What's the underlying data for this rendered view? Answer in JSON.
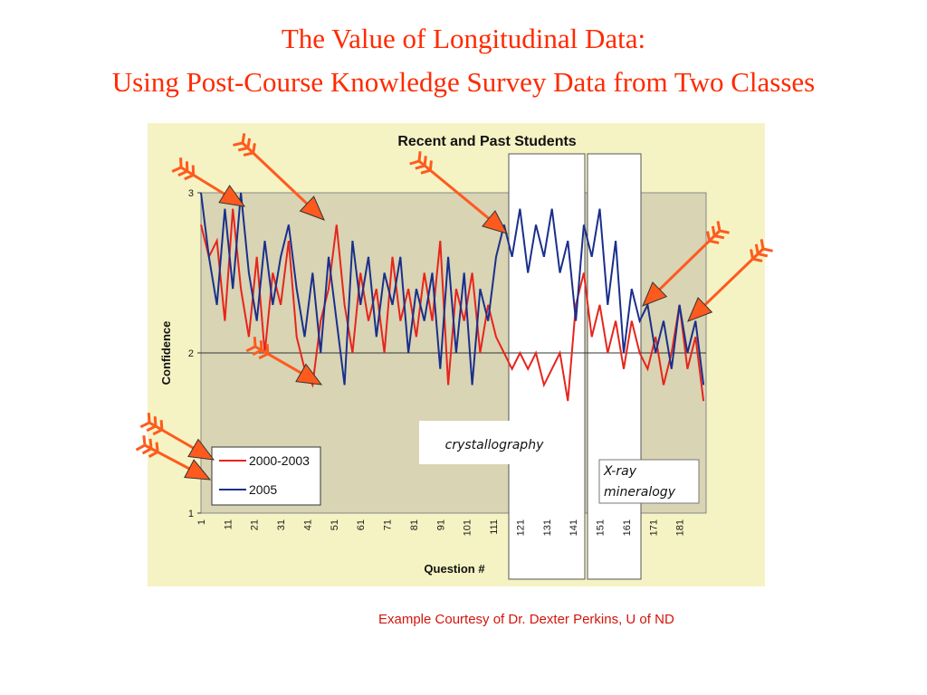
{
  "slide": {
    "title_line1": "The Value of Longitudinal Data:",
    "title_line2": "Using Post-Course Knowledge Survey Data from Two Classes",
    "credit": "Example Courtesy of Dr. Dexter Perkins, U of ND"
  },
  "colors": {
    "title": "#ff2a00",
    "credit": "#d4140c",
    "figure_background": "#f5f3c3",
    "plot_background": "#d8d4b4",
    "series_2000_2003": "#e8241c",
    "series_2005": "#1a2f8c",
    "arrow": "#ff5a1e"
  },
  "annotations": {
    "crystallography": "crystallography",
    "xray_line1": "X-ray",
    "xray_line2": "mineralogy"
  },
  "chart_data": {
    "type": "line",
    "title": "Recent and Past Students",
    "xlabel": "Question #",
    "ylabel": "Confidence",
    "xlim": [
      1,
      191
    ],
    "ylim": [
      1,
      3
    ],
    "yticks": [
      1,
      2,
      3
    ],
    "xticks": [
      1,
      11,
      21,
      31,
      41,
      51,
      61,
      71,
      81,
      91,
      101,
      111,
      121,
      131,
      141,
      151,
      161,
      171,
      181
    ],
    "legend_position": "bottom-left",
    "grid": "horizontal line at 2",
    "highlighted_ranges": [
      {
        "label": "crystallography",
        "x": [
          114,
          141
        ]
      },
      {
        "label": "X-ray mineralogy",
        "x": [
          142,
          162
        ]
      }
    ],
    "series": [
      {
        "name": "2000-2003",
        "x": [
          1,
          4,
          7,
          10,
          13,
          16,
          19,
          22,
          25,
          28,
          31,
          34,
          37,
          40,
          43,
          46,
          49,
          52,
          55,
          58,
          61,
          64,
          67,
          70,
          73,
          76,
          79,
          82,
          85,
          88,
          91,
          94,
          97,
          100,
          103,
          106,
          109,
          112,
          115,
          118,
          121,
          124,
          127,
          130,
          133,
          136,
          139,
          142,
          145,
          148,
          151,
          154,
          157,
          160,
          163,
          166,
          169,
          172,
          175,
          178,
          181,
          184,
          187,
          190
        ],
        "values": [
          2.8,
          2.6,
          2.7,
          2.2,
          2.9,
          2.4,
          2.1,
          2.6,
          2.0,
          2.5,
          2.3,
          2.7,
          2.1,
          1.9,
          1.8,
          2.2,
          2.4,
          2.8,
          2.3,
          2.0,
          2.5,
          2.2,
          2.4,
          2.0,
          2.6,
          2.2,
          2.4,
          2.1,
          2.5,
          2.2,
          2.7,
          1.8,
          2.4,
          2.2,
          2.5,
          2.0,
          2.3,
          2.1,
          2.0,
          1.9,
          2.0,
          1.9,
          2.0,
          1.8,
          1.9,
          2.0,
          1.7,
          2.3,
          2.5,
          2.1,
          2.3,
          2.0,
          2.2,
          1.9,
          2.2,
          2.0,
          1.9,
          2.1,
          1.8,
          2.0,
          2.3,
          1.9,
          2.1,
          1.7
        ]
      },
      {
        "name": "2005",
        "x": [
          1,
          4,
          7,
          10,
          13,
          16,
          19,
          22,
          25,
          28,
          31,
          34,
          37,
          40,
          43,
          46,
          49,
          52,
          55,
          58,
          61,
          64,
          67,
          70,
          73,
          76,
          79,
          82,
          85,
          88,
          91,
          94,
          97,
          100,
          103,
          106,
          109,
          112,
          115,
          118,
          121,
          124,
          127,
          130,
          133,
          136,
          139,
          142,
          145,
          148,
          151,
          154,
          157,
          160,
          163,
          166,
          169,
          172,
          175,
          178,
          181,
          184,
          187,
          190
        ],
        "values": [
          3.0,
          2.6,
          2.3,
          2.9,
          2.4,
          3.0,
          2.5,
          2.2,
          2.7,
          2.3,
          2.6,
          2.8,
          2.4,
          2.1,
          2.5,
          2.0,
          2.6,
          2.2,
          1.8,
          2.7,
          2.3,
          2.6,
          2.1,
          2.5,
          2.3,
          2.6,
          2.0,
          2.4,
          2.2,
          2.5,
          1.9,
          2.6,
          2.0,
          2.5,
          1.8,
          2.4,
          2.2,
          2.6,
          2.8,
          2.6,
          2.9,
          2.5,
          2.8,
          2.6,
          2.9,
          2.5,
          2.7,
          2.2,
          2.8,
          2.6,
          2.9,
          2.3,
          2.7,
          2.0,
          2.4,
          2.2,
          2.3,
          2.0,
          2.2,
          1.9,
          2.3,
          2.0,
          2.2,
          1.8
        ]
      }
    ]
  }
}
